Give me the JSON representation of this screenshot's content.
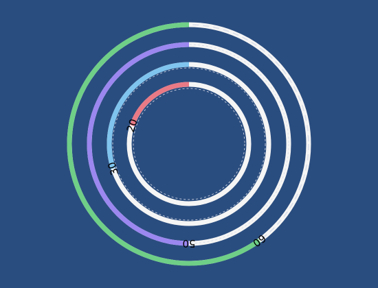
{
  "chart_data": {
    "type": "radial-bar",
    "max": 100,
    "start_angle_deg": 0,
    "direction": "counterclockwise",
    "rings": [
      {
        "value": 60,
        "label": "60",
        "color": "#6fcf87"
      },
      {
        "value": 50,
        "label": "50",
        "color": "#9b87ef"
      },
      {
        "value": 30,
        "label": "30",
        "color": "#7fc4ee"
      },
      {
        "value": 20,
        "label": "20",
        "color": "#e87a86"
      }
    ],
    "track_color": "#f5f5f5",
    "background_color": "#2a4d7f"
  }
}
